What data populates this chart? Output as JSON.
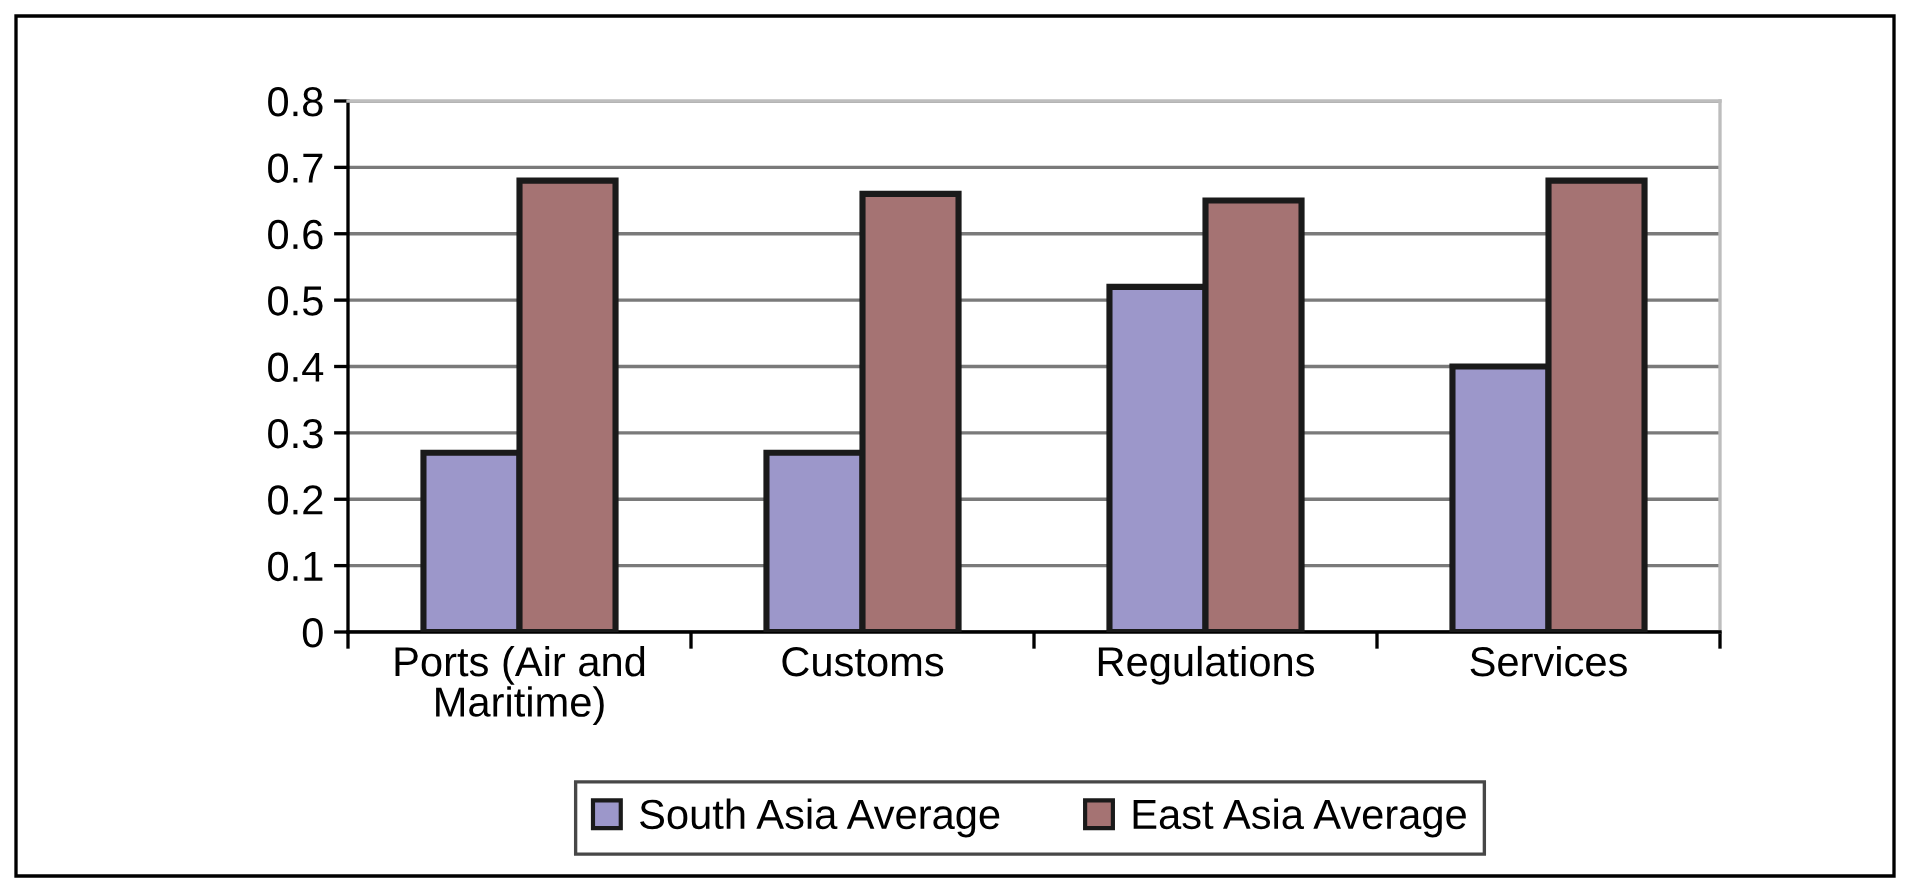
{
  "chart_data": {
    "type": "bar",
    "categories": [
      "Ports (Air and\nMaritime)",
      "Customs",
      "Regulations",
      "Services"
    ],
    "series": [
      {
        "name": "South Asia Average",
        "color": "#9c97ca",
        "values": [
          0.27,
          0.27,
          0.52,
          0.4
        ]
      },
      {
        "name": "East Asia Average",
        "color": "#a57373",
        "values": [
          0.68,
          0.66,
          0.65,
          0.68
        ]
      }
    ],
    "ylim": [
      0,
      0.8
    ],
    "yticks": [
      0,
      0.1,
      0.2,
      0.3,
      0.4,
      0.5,
      0.6,
      0.7,
      0.8
    ],
    "grid": "y",
    "legend": "bottom"
  }
}
